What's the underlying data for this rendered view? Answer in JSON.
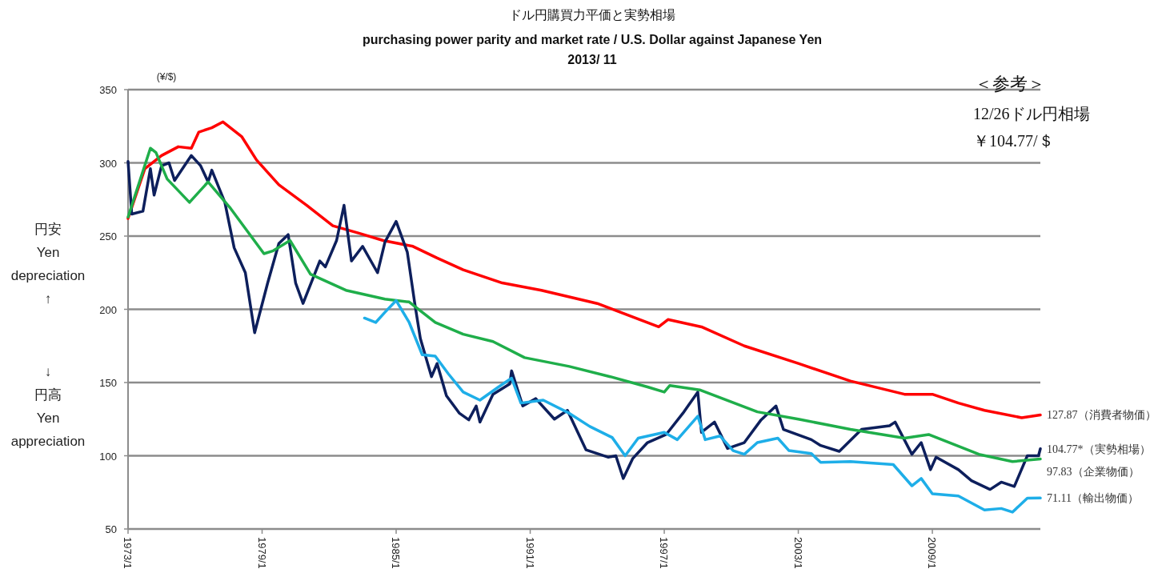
{
  "chart_data": {
    "type": "line",
    "title": "ドル円購買力平価と実勢相場",
    "subtitle": "purchasing power parity and market rate / U.S. Dollar against Japanese Yen",
    "ylabel": "円安\nYen\ndepreciation\n↑",
    "annotations": [
      "2013/ 11",
      "(¥/$)",
      "＜参考＞",
      "12/26ドル円相場",
      "￥104.77/＄",
      "↓\n円高\nYen\nappreciation"
    ],
    "xlim": [
      "1973-01",
      "2013-11"
    ],
    "xticks": [
      {
        "value": "1973-01",
        "label": "1973/1"
      },
      {
        "value": "1979-01",
        "label": "1979/1"
      },
      {
        "value": "1985-01",
        "label": "1985/1"
      },
      {
        "value": "1991-01",
        "label": "1991/1"
      },
      {
        "value": "1997-01",
        "label": "1997/1"
      },
      {
        "value": "2003-01",
        "label": "2003/1"
      },
      {
        "value": "2009-01",
        "label": "2009/1"
      }
    ],
    "ylim": [
      50,
      350
    ],
    "yticks": [
      50,
      100,
      150,
      200,
      250,
      300,
      350
    ],
    "grid": "y",
    "series": [
      {
        "name": "127.87（消費者物価）",
        "color": "#ff0000",
        "x": [
          "1973-01",
          "1973-10",
          "1974-07",
          "1975-04",
          "1975-11",
          "1976-03",
          "1976-10",
          "1977-04",
          "1978-02",
          "1978-10",
          "1979-10",
          "1981-01",
          "1982-03",
          "1983-05",
          "1984-06",
          "1985-10",
          "1986-11",
          "1988-01",
          "1989-10",
          "1991-07",
          "1994-01",
          "1996-10",
          "1997-03",
          "1998-09",
          "2000-08",
          "2003-01",
          "2005-05",
          "2007-10",
          "2009-01",
          "2010-03",
          "2011-05",
          "2013-01",
          "2013-11"
        ],
        "values": [
          262,
          296,
          305,
          311,
          310,
          321,
          324,
          328,
          318,
          302,
          285,
          271,
          257,
          252,
          247,
          243,
          235,
          227,
          218,
          213,
          204,
          188,
          193,
          188,
          175,
          163,
          151,
          142,
          142,
          136,
          131,
          126,
          127.87
        ]
      },
      {
        "name": "104.77*（実勢相場）",
        "color": "#0d1f5c",
        "x": [
          "1973-01",
          "1973-03",
          "1973-09",
          "1974-01",
          "1974-03",
          "1974-07",
          "1974-11",
          "1975-02",
          "1975-11",
          "1976-04",
          "1976-08",
          "1976-10",
          "1977-05",
          "1977-10",
          "1978-04",
          "1978-09",
          "1979-04",
          "1979-10",
          "1980-03",
          "1980-07",
          "1980-11",
          "1981-08",
          "1981-11",
          "1982-05",
          "1982-09",
          "1983-01",
          "1983-07",
          "1984-03",
          "1984-07",
          "1985-01",
          "1985-07",
          "1985-11",
          "1986-02",
          "1986-08",
          "1986-11",
          "1987-04",
          "1987-11",
          "1988-04",
          "1988-08",
          "1988-10",
          "1989-05",
          "1990-02",
          "1990-03",
          "1990-09",
          "1991-04",
          "1992-02",
          "1992-09",
          "1993-07",
          "1994-07",
          "1994-11",
          "1995-03",
          "1995-08",
          "1996-04",
          "1997-02",
          "1997-11",
          "1998-07",
          "1998-09",
          "1999-04",
          "1999-11",
          "2000-08",
          "2001-05",
          "2002-01",
          "2002-05",
          "2003-08",
          "2004-01",
          "2004-11",
          "2005-11",
          "2007-02",
          "2007-05",
          "2008-02",
          "2008-07",
          "2008-12",
          "2009-03",
          "2010-03",
          "2010-10",
          "2011-08",
          "2012-02",
          "2012-09",
          "2013-04",
          "2013-10",
          "2013-11"
        ],
        "values": [
          301,
          265,
          267,
          296,
          278,
          298,
          300,
          288,
          305,
          298,
          287,
          295,
          273,
          242,
          225,
          184,
          218,
          245,
          251,
          218,
          204,
          233,
          229,
          247,
          271,
          233,
          243,
          225,
          246,
          260,
          239,
          204,
          180,
          154,
          163,
          141,
          129,
          124.5,
          134,
          123,
          142,
          149,
          158,
          134,
          139,
          125,
          131,
          104,
          99,
          100,
          84.5,
          98,
          109,
          114.5,
          129,
          143.5,
          116,
          123,
          105,
          109,
          124.5,
          134,
          118,
          111,
          107,
          103,
          118,
          120.5,
          123,
          101,
          109,
          90.5,
          99,
          90.5,
          83,
          77,
          82,
          79,
          100,
          100,
          104.77
        ]
      },
      {
        "name": "97.83（企業物価）",
        "color": "#1fae4a",
        "x": [
          "1973-01",
          "1974-01",
          "1974-04",
          "1974-10",
          "1975-10",
          "1976-08",
          "1977-08",
          "1979-02",
          "1979-07",
          "1980-04",
          "1981-03",
          "1982-10",
          "1984-07",
          "1985-08",
          "1986-10",
          "1988-01",
          "1989-05",
          "1990-10",
          "1992-10",
          "1994-08",
          "1996-04",
          "1997-01",
          "1997-04",
          "1998-08",
          "2001-03",
          "2003-01",
          "2005-05",
          "2007-10",
          "2008-11",
          "2011-02",
          "2012-08",
          "2013-11"
        ],
        "values": [
          263,
          310,
          307,
          289,
          273,
          287,
          269,
          238,
          240,
          247,
          224,
          213,
          207,
          205,
          191,
          183,
          178,
          167,
          161,
          154,
          147,
          143.5,
          148,
          145,
          130,
          125,
          118,
          112,
          114.5,
          101,
          96,
          97.83
        ]
      },
      {
        "name": "71.11（輸出物価）",
        "color": "#1eaee8",
        "x": [
          "1983-08",
          "1984-02",
          "1984-07",
          "1985-01",
          "1985-08",
          "1986-03",
          "1986-10",
          "1987-05",
          "1988-01",
          "1988-10",
          "1989-08",
          "1990-03",
          "1990-08",
          "1991-08",
          "1992-10",
          "1993-09",
          "1994-09",
          "1995-04",
          "1995-11",
          "1997-01",
          "1997-08",
          "1998-07",
          "1998-11",
          "1999-07",
          "2000-02",
          "2000-08",
          "2001-03",
          "2002-02",
          "2002-08",
          "2003-08",
          "2004-01",
          "2005-05",
          "2007-04",
          "2008-02",
          "2008-07",
          "2009-01",
          "2010-03",
          "2011-05",
          "2012-02",
          "2012-08",
          "2013-04",
          "2013-11"
        ],
        "values": [
          194,
          191,
          198,
          206,
          191,
          169,
          168,
          156,
          143.5,
          138,
          147,
          153,
          136,
          138,
          129,
          120,
          112.5,
          100,
          112,
          116,
          111,
          127,
          111,
          113.5,
          103.5,
          101,
          109,
          112,
          103.5,
          101.5,
          95.5,
          96,
          94,
          79.5,
          84.5,
          74,
          72.5,
          63,
          64,
          61.5,
          71,
          71.11
        ]
      }
    ]
  }
}
